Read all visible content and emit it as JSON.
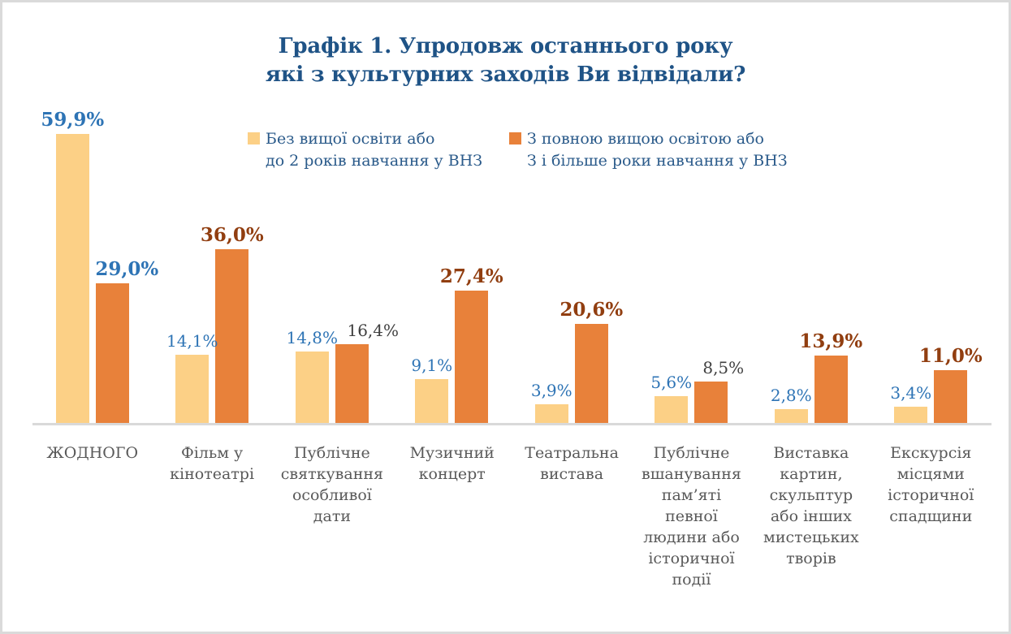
{
  "title": {
    "line1": "Графік 1. Упродовж останнього року",
    "line2": "які з культурних заходів Ви відвідали?"
  },
  "legend": {
    "items": [
      {
        "line1": "Без вищої освіти або",
        "line2": "до 2 років навчання у ВНЗ",
        "color": "#FCD086"
      },
      {
        "line1": "З повною вищою освітою або",
        "line2": "З і більше роки навчання у ВНЗ",
        "color": "#E8813A"
      }
    ]
  },
  "chart_data": {
    "type": "bar",
    "title": "Графік 1. Упродовж останнього року які з культурних заходів Ви відвідали?",
    "categories": [
      "ЖОДНОГО",
      "Фільм у кінотеатрі",
      "Публічне святкування особливої дати",
      "Музичний концерт",
      "Театральна вистава",
      "Публічне вшанування пам’яті певної людини або історичної події",
      "Виставка картин, скульптур або інших мистецьких творів",
      "Екскурсія місцями історичної спадщини"
    ],
    "series": [
      {
        "name": "Без вищої освіти або до 2 років навчання у ВНЗ",
        "color": "#FCD086",
        "values": [
          59.9,
          14.1,
          14.8,
          9.1,
          3.9,
          5.6,
          2.8,
          3.4
        ],
        "labels": [
          "59,9%",
          "14,1%",
          "14,8%",
          "9,1%",
          "3,9%",
          "5,6%",
          "2,8%",
          "3,4%"
        ],
        "label_styles": [
          "blue-bold",
          "blue",
          "blue",
          "blue",
          "blue",
          "blue",
          "blue",
          "blue"
        ],
        "label_dx": [
          0,
          0,
          0,
          0,
          0,
          0,
          0,
          0
        ]
      },
      {
        "name": "З повною вищою освітою або З і більше роки навчання у ВНЗ",
        "color": "#E8813A",
        "values": [
          29.0,
          36.0,
          16.4,
          27.4,
          20.6,
          8.5,
          13.9,
          11.0
        ],
        "labels": [
          "29,0%",
          "36,0%",
          "16,4%",
          "27,4%",
          "20,6%",
          "8,5%",
          "13,9%",
          "11,0%"
        ],
        "label_styles": [
          "blue-bold",
          "brown-bold",
          "gray",
          "brown-bold",
          "brown-bold",
          "gray",
          "brown-bold",
          "brown-bold"
        ],
        "label_dx": [
          18,
          0,
          26,
          0,
          0,
          15,
          0,
          0
        ]
      }
    ],
    "ylim": [
      0,
      60
    ],
    "grid": false,
    "legend_position": "top",
    "value_label_colors": {
      "blue": "#2E74B5",
      "blue-bold": "#2E74B5",
      "brown-bold": "#913E10",
      "gray": "#404040"
    }
  },
  "colors": {
    "background": "#FFFFFF",
    "frame_border": "#DADADA",
    "title_text": "#1F5386",
    "legend_text": "#2A5A8A",
    "axis_line": "#D9D9D9",
    "category_text": "#595959"
  }
}
